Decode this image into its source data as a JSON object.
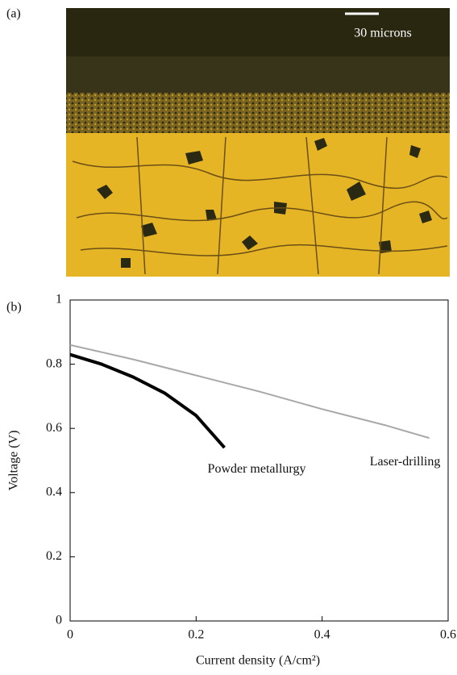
{
  "figure": {
    "panel_a": {
      "label": "(a)",
      "scale_bar": "30 microns"
    }
  },
  "chart_data": {
    "type": "line",
    "panel_label": "(b)",
    "x_label": "Current density (A/cm²)",
    "y_label": "Voltage (V)",
    "xlim": [
      0,
      0.6
    ],
    "ylim": [
      0,
      1
    ],
    "xticks": [
      0,
      0.2,
      0.4,
      0.6
    ],
    "yticks": [
      0,
      0.2,
      0.4,
      0.6,
      0.8,
      1
    ],
    "grid": false,
    "series": [
      {
        "name": "Powder metallurgy",
        "color": "#000000",
        "x": [
          0,
          0.05,
          0.1,
          0.15,
          0.2,
          0.245
        ],
        "values": [
          0.83,
          0.8,
          0.76,
          0.71,
          0.64,
          0.54
        ]
      },
      {
        "name": "Laser-drilling",
        "color": "#a8a8a8",
        "x": [
          0,
          0.1,
          0.2,
          0.3,
          0.4,
          0.5,
          0.57
        ],
        "values": [
          0.86,
          0.815,
          0.765,
          0.715,
          0.66,
          0.61,
          0.57
        ]
      }
    ]
  }
}
